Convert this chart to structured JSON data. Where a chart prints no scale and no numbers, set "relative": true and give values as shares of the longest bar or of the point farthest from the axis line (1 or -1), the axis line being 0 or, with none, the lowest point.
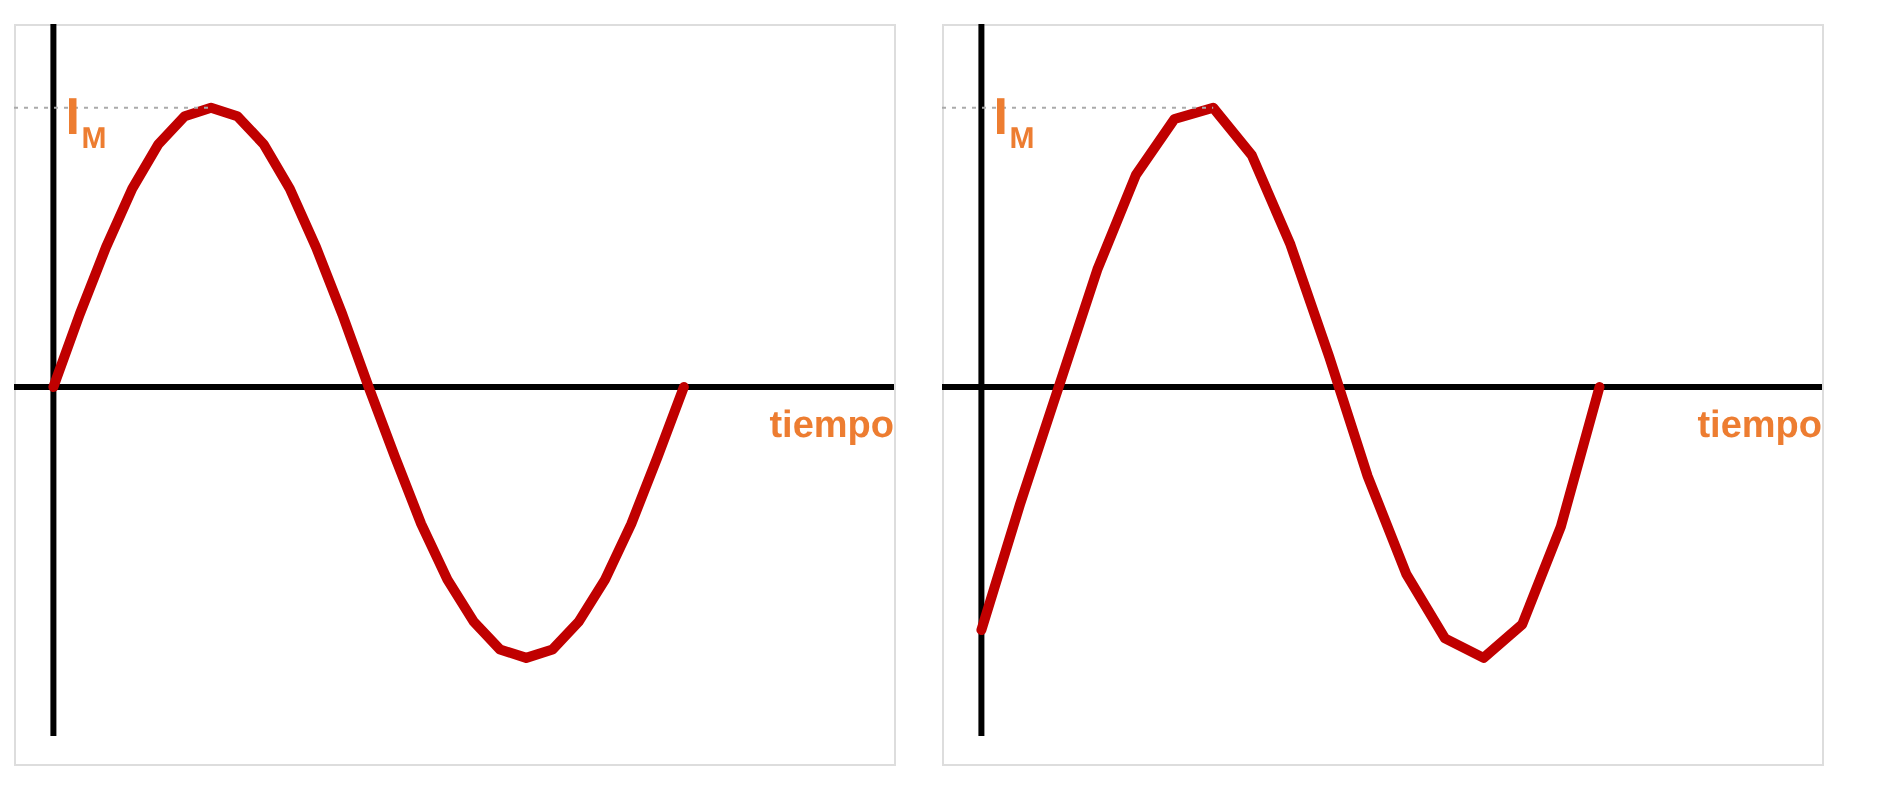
{
  "chart_data": [
    {
      "type": "line",
      "relative": true,
      "xlabel": "tiempo",
      "line_style": "solid",
      "categories": [
        null,
        null,
        null,
        null,
        null,
        null,
        null,
        null,
        null,
        null,
        null,
        null,
        null,
        null,
        null,
        null,
        null,
        null,
        null,
        null,
        null,
        null,
        null,
        null,
        null
      ],
      "series": [
        {
          "color": "#c00000",
          "values": [
            0,
            0.26,
            0.5,
            0.71,
            0.87,
            0.97,
            1,
            0.97,
            0.87,
            0.71,
            0.5,
            0.26,
            0,
            -0.25,
            -0.49,
            -0.69,
            -0.84,
            -0.94,
            -0.97,
            -0.94,
            -0.84,
            -0.69,
            -0.49,
            -0.25,
            0
          ]
        }
      ],
      "ref_lines": [
        {
          "axis": "y",
          "value": 1,
          "label": "I$_{M}$",
          "color": "#aaaaaa",
          "line_style": "dotted"
        }
      ]
    },
    {
      "type": "line",
      "relative": true,
      "xlabel": "tiempo",
      "line_style": "solid",
      "categories": [
        null,
        null,
        null,
        null,
        null,
        null,
        null,
        null,
        null,
        null,
        null,
        null,
        null,
        null,
        null,
        null,
        null
      ],
      "series": [
        {
          "color": "#c00000",
          "values": [
            -0.87,
            -0.42,
            0,
            0.42,
            0.76,
            0.96,
            1,
            0.83,
            0.51,
            0.11,
            -0.32,
            -0.67,
            -0.9,
            -0.97,
            -0.85,
            -0.5,
            0
          ]
        }
      ],
      "ref_lines": [
        {
          "axis": "y",
          "value": 1,
          "label": "I$_{M}$",
          "color": "#aaaaaa",
          "line_style": "dotted"
        }
      ]
    }
  ]
}
